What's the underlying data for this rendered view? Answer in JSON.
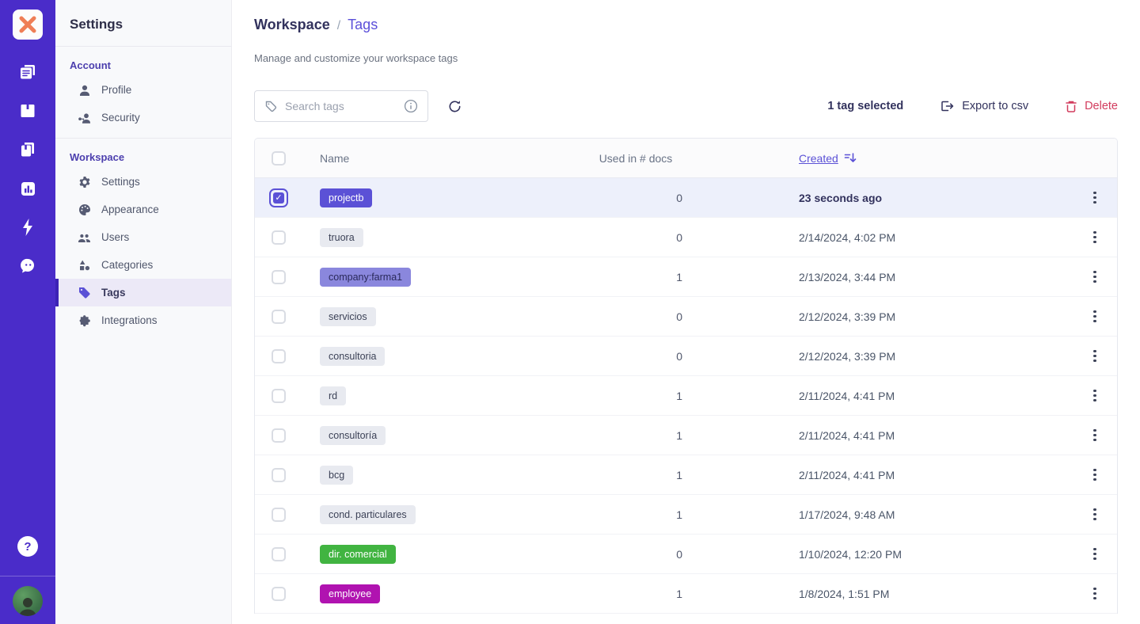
{
  "colors": {
    "rail-bg": "#4a2cc9",
    "accent": "#5b51d6",
    "accent-deep": "#3d23b5",
    "link": "#5b4fd9",
    "section-header": "#4c3fae",
    "delete-red": "#d23b5d",
    "selected-row": "#edf0fb",
    "nav-active-bg": "#ece9f7",
    "logo-x": "#ef7e56"
  },
  "rail": {
    "icons": [
      "feed-icon",
      "notebook-icon",
      "library-icon",
      "analytics-icon",
      "bolt-icon",
      "assistant-icon"
    ],
    "help_label": "?"
  },
  "settings_nav": {
    "title": "Settings",
    "sections": [
      {
        "label": "Account",
        "items": [
          {
            "label": "Profile",
            "icon": "person-icon"
          },
          {
            "label": "Security",
            "icon": "key-person-icon"
          }
        ]
      },
      {
        "label": "Workspace",
        "items": [
          {
            "label": "Settings",
            "icon": "gear-icon"
          },
          {
            "label": "Appearance",
            "icon": "palette-icon"
          },
          {
            "label": "Users",
            "icon": "users-icon"
          },
          {
            "label": "Categories",
            "icon": "categories-icon"
          },
          {
            "label": "Tags",
            "icon": "tag-icon",
            "active": true
          },
          {
            "label": "Integrations",
            "icon": "puzzle-icon"
          }
        ]
      }
    ]
  },
  "main": {
    "breadcrumb": {
      "parent": "Workspace",
      "separator": "/",
      "current": "Tags"
    },
    "subtitle": "Manage and customize your workspace tags",
    "toolbar": {
      "search_placeholder": "Search tags",
      "selected_text": "1 tag selected",
      "export_label": "Export to csv",
      "delete_label": "Delete"
    },
    "table": {
      "columns": {
        "name": "Name",
        "docs": "Used in # docs",
        "created": "Created"
      },
      "rows": [
        {
          "tag": "projectb",
          "badge_bg": "#5b51d6",
          "badge_fg": "#ffffff",
          "docs": "0",
          "created": "23 seconds ago",
          "selected": true
        },
        {
          "tag": "truora",
          "badge_bg": "#e8eaf0",
          "badge_fg": "#3c4257",
          "docs": "0",
          "created": "2/14/2024, 4:02 PM",
          "selected": false
        },
        {
          "tag": "company:farma1",
          "badge_bg": "#8a87dd",
          "badge_fg": "#29295a",
          "docs": "1",
          "created": "2/13/2024, 3:44 PM",
          "selected": false
        },
        {
          "tag": "servicios",
          "badge_bg": "#e8eaf0",
          "badge_fg": "#3c4257",
          "docs": "0",
          "created": "2/12/2024, 3:39 PM",
          "selected": false
        },
        {
          "tag": "consultoria",
          "badge_bg": "#e8eaf0",
          "badge_fg": "#3c4257",
          "docs": "0",
          "created": "2/12/2024, 3:39 PM",
          "selected": false
        },
        {
          "tag": "rd",
          "badge_bg": "#e8eaf0",
          "badge_fg": "#3c4257",
          "docs": "1",
          "created": "2/11/2024, 4:41 PM",
          "selected": false
        },
        {
          "tag": "consultoría",
          "badge_bg": "#e8eaf0",
          "badge_fg": "#3c4257",
          "docs": "1",
          "created": "2/11/2024, 4:41 PM",
          "selected": false
        },
        {
          "tag": "bcg",
          "badge_bg": "#e8eaf0",
          "badge_fg": "#3c4257",
          "docs": "1",
          "created": "2/11/2024, 4:41 PM",
          "selected": false
        },
        {
          "tag": "cond. particulares",
          "badge_bg": "#e8eaf0",
          "badge_fg": "#3c4257",
          "docs": "1",
          "created": "1/17/2024, 9:48 AM",
          "selected": false
        },
        {
          "tag": "dir. comercial",
          "badge_bg": "#41b441",
          "badge_fg": "#ffffff",
          "docs": "0",
          "created": "1/10/2024, 12:20 PM",
          "selected": false
        },
        {
          "tag": "employee",
          "badge_bg": "#b013b0",
          "badge_fg": "#ffffff",
          "docs": "1",
          "created": "1/8/2024, 1:51 PM",
          "selected": false
        }
      ]
    }
  }
}
